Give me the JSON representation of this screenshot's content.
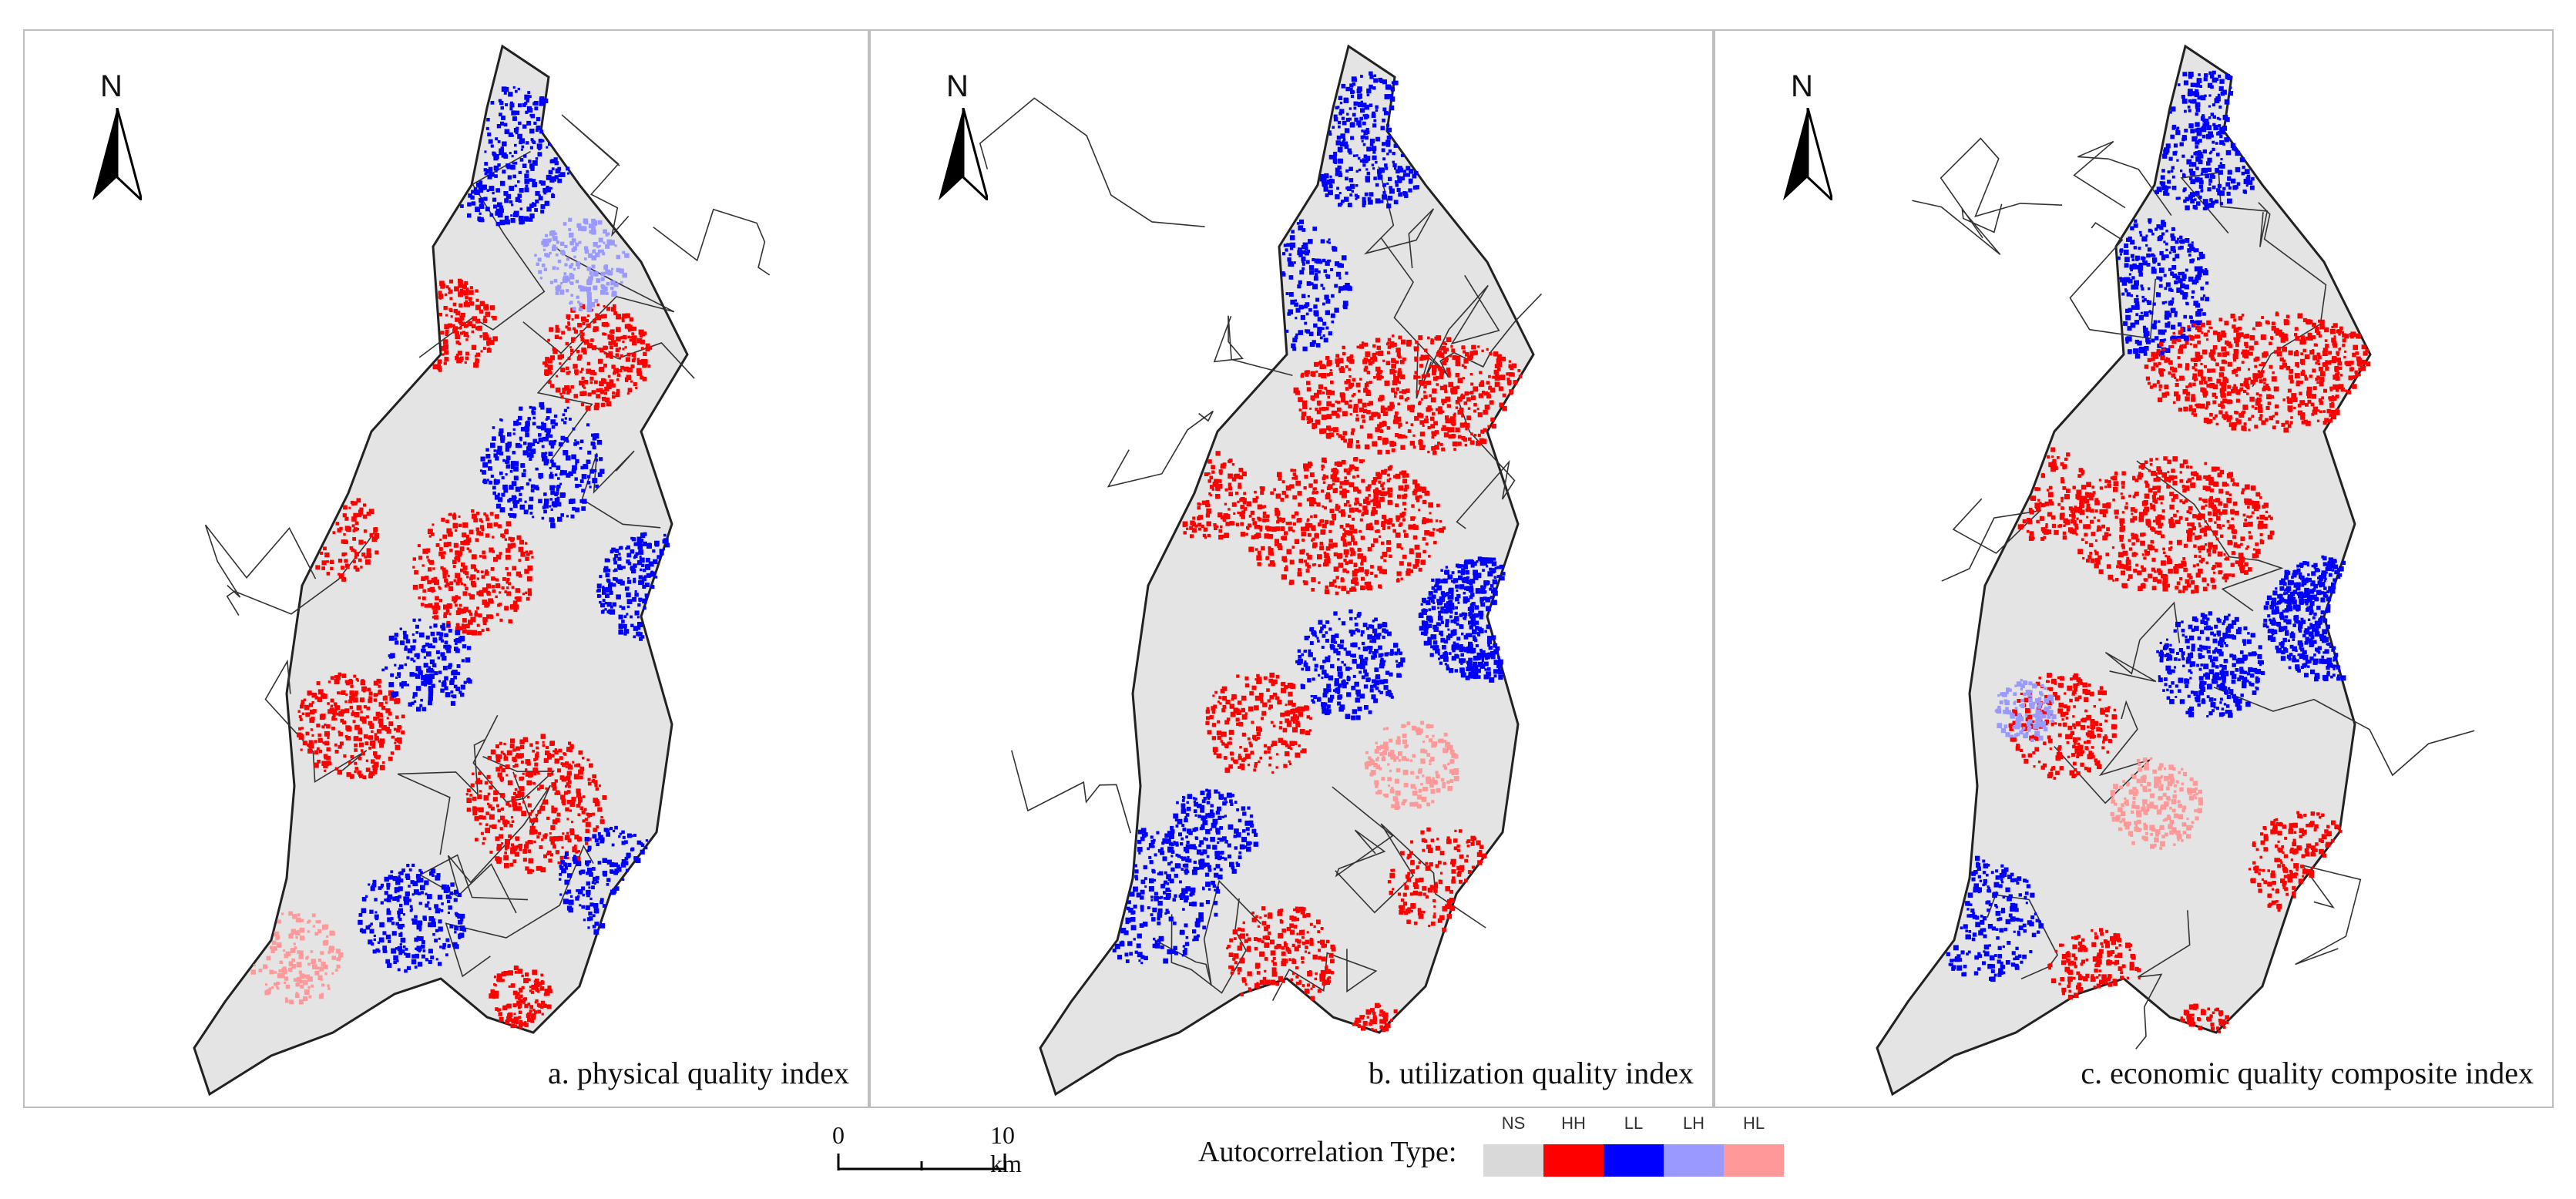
{
  "panels": [
    {
      "id": "a",
      "caption": "a.  physical quality index",
      "north_label": "N"
    },
    {
      "id": "b",
      "caption": "b.  utilization quality index",
      "north_label": "N"
    },
    {
      "id": "c",
      "caption": "c.  economic quality composite index",
      "north_label": "N"
    }
  ],
  "scalebar": {
    "start_label": "0",
    "end_label": "10 km"
  },
  "legend": {
    "title": "Autocorrelation Type:",
    "items": [
      {
        "code": "NS",
        "color": "#d9d9d9"
      },
      {
        "code": "HH",
        "color": "#ff0000"
      },
      {
        "code": "LL",
        "color": "#0000ff"
      },
      {
        "code": "LH",
        "color": "#9999ff"
      },
      {
        "code": "HL",
        "color": "#ff9999"
      }
    ]
  },
  "colors": {
    "background": "#ffffff",
    "region_fill": "#e4e4e4",
    "boundary": "#222222",
    "frame": "#bdbdbd"
  }
}
